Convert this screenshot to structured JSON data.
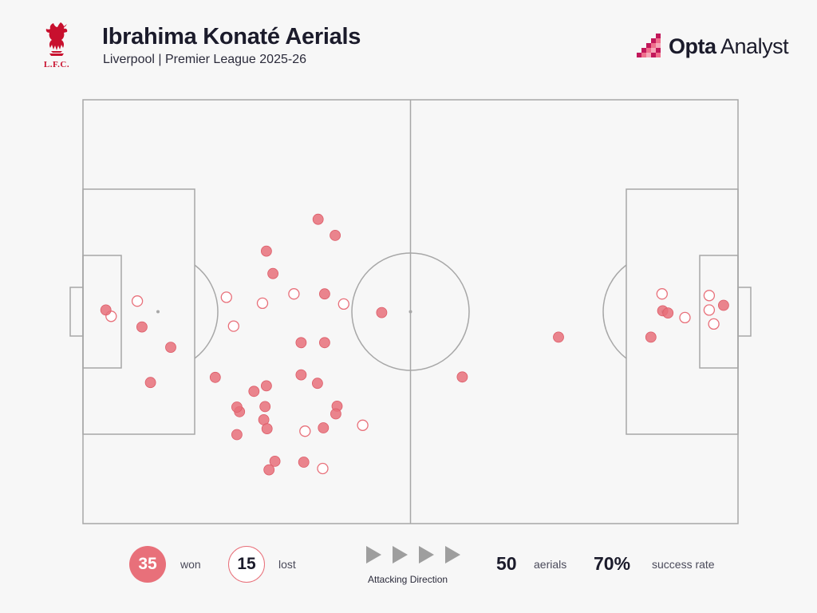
{
  "header": {
    "title": "Ibrahima Konaté Aerials",
    "subtitle": "Liverpool | Premier League 2025-26",
    "crest_text": "L.F.C.",
    "brand_bold": "Opta",
    "brand_light": " Analyst"
  },
  "legend": {
    "won_count": "35",
    "won_label": "won",
    "lost_count": "15",
    "lost_label": "lost",
    "direction_label": "Attacking Direction",
    "total_value": "50",
    "total_label": "aerials",
    "rate_value": "70%",
    "rate_label": "success rate"
  },
  "colors": {
    "won": "#e8707a",
    "lost_stroke": "#e8707a",
    "pitch_line": "#a7a7a7",
    "brand": "#c8102e",
    "opta_magenta": "#c2185b",
    "opta_pink": "#ef6f8c"
  },
  "chart_data": {
    "type": "scatter",
    "title": "Ibrahima Konaté Aerials",
    "x_axis": "pitch length (0-100, attacking left to right)",
    "y_axis": "pitch width (0-100, top to bottom)",
    "xlim": [
      0,
      100
    ],
    "ylim": [
      0,
      100
    ],
    "series": [
      {
        "name": "won",
        "points": [
          [
            3.5,
            49.6
          ],
          [
            9.0,
            53.6
          ],
          [
            13.4,
            58.4
          ],
          [
            10.3,
            66.7
          ],
          [
            20.2,
            65.5
          ],
          [
            35.9,
            28.2
          ],
          [
            38.5,
            32.0
          ],
          [
            28.0,
            35.7
          ],
          [
            29.0,
            41.0
          ],
          [
            36.9,
            45.8
          ],
          [
            45.6,
            50.2
          ],
          [
            33.3,
            57.3
          ],
          [
            36.9,
            57.3
          ],
          [
            33.3,
            64.9
          ],
          [
            35.8,
            66.9
          ],
          [
            28.0,
            67.5
          ],
          [
            26.1,
            68.8
          ],
          [
            38.8,
            72.3
          ],
          [
            38.6,
            74.1
          ],
          [
            23.9,
            73.6
          ],
          [
            27.8,
            72.4
          ],
          [
            27.6,
            75.5
          ],
          [
            28.1,
            77.6
          ],
          [
            23.5,
            79.0
          ],
          [
            36.7,
            77.4
          ],
          [
            29.3,
            85.3
          ],
          [
            33.7,
            85.5
          ],
          [
            28.4,
            87.3
          ],
          [
            57.9,
            65.4
          ],
          [
            72.6,
            56.0
          ],
          [
            86.7,
            56.0
          ],
          [
            88.5,
            49.8
          ],
          [
            89.3,
            50.3
          ],
          [
            97.8,
            48.5
          ],
          [
            23.5,
            72.5
          ]
        ]
      },
      {
        "name": "lost",
        "points": [
          [
            8.3,
            47.5
          ],
          [
            4.3,
            51.1
          ],
          [
            21.9,
            46.6
          ],
          [
            23.0,
            53.4
          ],
          [
            27.4,
            48.0
          ],
          [
            32.2,
            45.8
          ],
          [
            39.8,
            48.2
          ],
          [
            33.9,
            78.2
          ],
          [
            42.7,
            76.8
          ],
          [
            36.6,
            87.0
          ],
          [
            88.4,
            45.8
          ],
          [
            91.9,
            51.4
          ],
          [
            95.6,
            46.2
          ],
          [
            95.6,
            49.6
          ],
          [
            96.3,
            52.9
          ]
        ]
      }
    ]
  }
}
